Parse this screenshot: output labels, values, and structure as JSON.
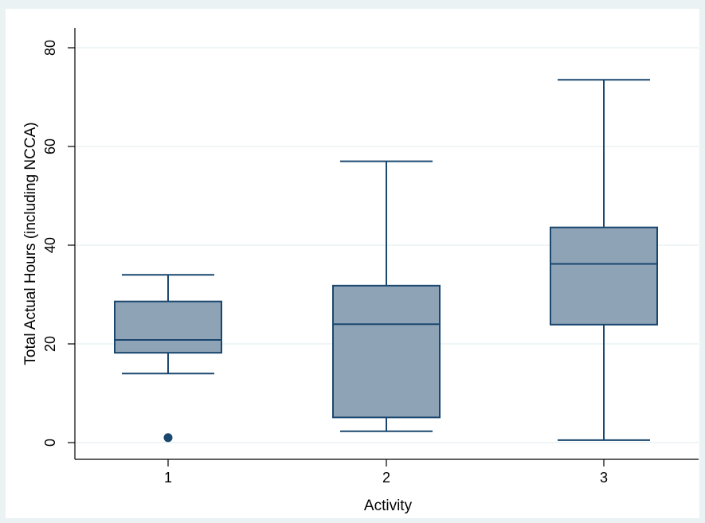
{
  "chart_data": {
    "type": "box",
    "xlabel": "Activity",
    "ylabel": "Total Actual Hours (including NCCA)",
    "categories": [
      "1",
      "2",
      "3"
    ],
    "yticks": [
      0,
      20,
      40,
      60,
      80
    ],
    "ylim": [
      -3.3,
      84
    ],
    "grid": true,
    "boxes": [
      {
        "category": "1",
        "whisker_low": 14,
        "q1": 18.2,
        "median": 20.8,
        "q3": 28.6,
        "whisker_high": 34,
        "outliers": [
          1
        ]
      },
      {
        "category": "2",
        "whisker_low": 2.3,
        "q1": 5.1,
        "median": 24,
        "q3": 31.8,
        "whisker_high": 57,
        "outliers": []
      },
      {
        "category": "3",
        "whisker_low": 0.5,
        "q1": 23.9,
        "median": 36.2,
        "q3": 43.6,
        "whisker_high": 73.5,
        "outliers": []
      }
    ],
    "colors": {
      "outer_background": "#eaf2f3",
      "plot_background": "#ffffff",
      "box_fill": "#8ea3b6",
      "box_stroke": "#1a476f",
      "grid": "#eaf2f3",
      "axis": "#000000"
    }
  }
}
